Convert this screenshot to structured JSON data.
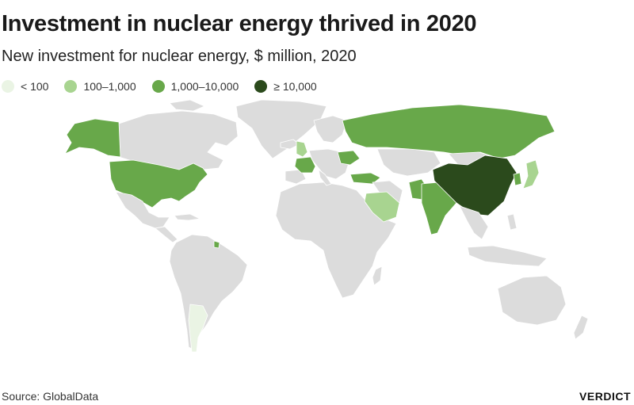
{
  "header": {
    "title": "Investment in nuclear energy thrived in 2020",
    "subtitle": "New investment for nuclear energy, $ million, 2020"
  },
  "legend": {
    "items": [
      {
        "label": "< 100",
        "color": "#eaf4e4"
      },
      {
        "label": "100–1,000",
        "color": "#a8d490"
      },
      {
        "label": "1,000–10,000",
        "color": "#68a84a"
      },
      {
        "label": "≥ 10,000",
        "color": "#2b4a1c"
      }
    ]
  },
  "map": {
    "no_data_color": "#dcdcdc",
    "border_color": "#ffffff",
    "regions": [
      {
        "name": "United States",
        "category": "1,000–10,000"
      },
      {
        "name": "Alaska",
        "category": "1,000–10,000"
      },
      {
        "name": "Russia",
        "category": "1,000–10,000"
      },
      {
        "name": "France",
        "category": "1,000–10,000"
      },
      {
        "name": "United Kingdom",
        "category": "100–1,000"
      },
      {
        "name": "Ukraine",
        "category": "1,000–10,000"
      },
      {
        "name": "Turkey",
        "category": "1,000–10,000"
      },
      {
        "name": "Saudi Arabia",
        "category": "100–1,000"
      },
      {
        "name": "India",
        "category": "1,000–10,000"
      },
      {
        "name": "Pakistan",
        "category": "1,000–10,000"
      },
      {
        "name": "China",
        "category": "≥ 10,000"
      },
      {
        "name": "Japan",
        "category": "100–1,000"
      },
      {
        "name": "South Korea",
        "category": "1,000–10,000"
      },
      {
        "name": "French Guiana",
        "category": "1,000–10,000"
      },
      {
        "name": "Argentina",
        "category": "< 100"
      }
    ]
  },
  "footer": {
    "source": "Source: GlobalData",
    "brand": "VERDICT"
  }
}
